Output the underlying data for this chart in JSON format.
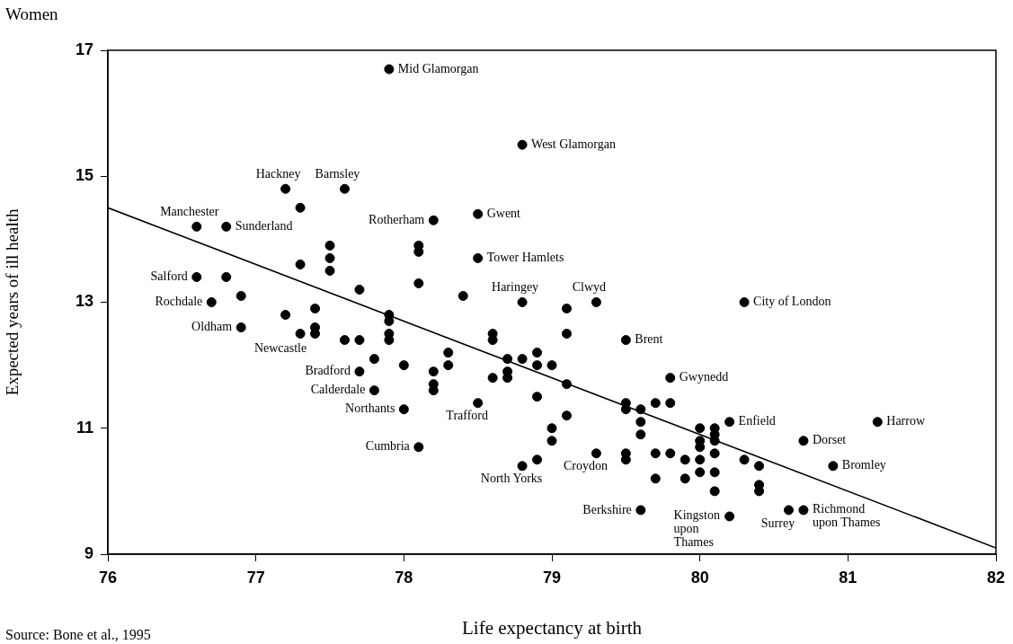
{
  "chart_data": {
    "type": "scatter",
    "title": "Women",
    "xlabel": "Life expectancy at birth",
    "ylabel": "Expected years of ill health",
    "xlim": [
      76,
      82
    ],
    "xticks": [
      76,
      77,
      78,
      79,
      80,
      81,
      82
    ],
    "ylim": [
      9,
      17
    ],
    "yticks": [
      9,
      11,
      13,
      15,
      17
    ],
    "grid": false,
    "legend": false,
    "series": [
      {
        "type": "scatter",
        "color": "#000000",
        "marker": "circle",
        "x": [
          77.9,
          78.8,
          77.2,
          77.6,
          77.3,
          76.6,
          76.8,
          78.2,
          78.5,
          77.5,
          77.5,
          77.5,
          77.3,
          78.1,
          78.1,
          78.5,
          76.6,
          76.8,
          77.7,
          78.1,
          78.4,
          76.7,
          76.9,
          77.2,
          77.4,
          76.9,
          77.3,
          77.4,
          77.4,
          77.6,
          77.7,
          77.9,
          77.9,
          77.9,
          77.9,
          77.8,
          78.0,
          77.7,
          77.8,
          78.0,
          78.1,
          78.8,
          79.3,
          79.1,
          79.1,
          79.5,
          78.6,
          78.6,
          78.3,
          78.3,
          78.2,
          78.2,
          78.2,
          78.7,
          78.7,
          78.7,
          78.8,
          78.9,
          78.9,
          79.0,
          78.6,
          79.1,
          79.8,
          79.5,
          79.5,
          79.6,
          79.7,
          79.8,
          79.6,
          79.6,
          78.5,
          78.9,
          79.1,
          79.0,
          79.0,
          78.9,
          78.8,
          79.3,
          79.5,
          79.5,
          79.7,
          79.8,
          79.9,
          79.7,
          79.9,
          79.6,
          80.3,
          80.2,
          81.2,
          80.7,
          80.9,
          80.0,
          80.0,
          80.0,
          80.0,
          80.0,
          80.1,
          80.1,
          80.1,
          80.1,
          80.1,
          80.1,
          80.3,
          80.4,
          80.4,
          80.4,
          80.2,
          80.6,
          80.7
        ],
        "values": [
          16.7,
          15.5,
          14.8,
          14.8,
          14.5,
          14.2,
          14.2,
          14.3,
          14.4,
          13.9,
          13.7,
          13.5,
          13.6,
          13.9,
          13.8,
          13.7,
          13.4,
          13.4,
          13.2,
          13.3,
          13.1,
          13.0,
          13.1,
          12.8,
          12.9,
          12.6,
          12.5,
          12.6,
          12.5,
          12.4,
          12.4,
          12.8,
          12.7,
          12.5,
          12.4,
          12.1,
          12.0,
          11.9,
          11.6,
          11.3,
          10.7,
          13.0,
          13.0,
          12.9,
          12.5,
          12.4,
          12.5,
          12.4,
          12.2,
          12.0,
          11.9,
          11.7,
          11.6,
          12.1,
          11.9,
          11.8,
          12.1,
          12.2,
          12.0,
          12.0,
          11.8,
          11.7,
          11.8,
          11.4,
          11.3,
          11.3,
          11.4,
          11.4,
          11.1,
          10.9,
          11.4,
          11.5,
          11.2,
          11.0,
          10.8,
          10.5,
          10.4,
          10.6,
          10.6,
          10.5,
          10.6,
          10.6,
          10.5,
          10.2,
          10.2,
          9.7,
          13.0,
          11.1,
          11.1,
          10.8,
          10.4,
          11.0,
          10.8,
          10.7,
          10.5,
          10.3,
          11.0,
          10.9,
          10.8,
          10.6,
          10.3,
          10.0,
          10.5,
          10.4,
          10.1,
          10.0,
          9.6,
          9.7,
          9.7
        ]
      },
      {
        "type": "line",
        "color": "#000000",
        "marker": "none",
        "line_style": "solid",
        "x": [
          76,
          82
        ],
        "values": [
          14.5,
          9.1
        ]
      }
    ],
    "annotations": [
      {
        "text": "Mid Glamorgan",
        "x": 77.9,
        "y": 16.7
      },
      {
        "text": "West Glamorgan",
        "x": 78.8,
        "y": 15.5
      },
      {
        "text": "Hackney",
        "x": 77.2,
        "y": 14.8
      },
      {
        "text": "Barnsley",
        "x": 77.6,
        "y": 14.8
      },
      {
        "text": "Manchester",
        "x": 76.6,
        "y": 14.2
      },
      {
        "text": "Sunderland",
        "x": 76.8,
        "y": 14.2
      },
      {
        "text": "Rotherham",
        "x": 78.2,
        "y": 14.3
      },
      {
        "text": "Gwent",
        "x": 78.5,
        "y": 14.4
      },
      {
        "text": "Tower Hamlets",
        "x": 78.5,
        "y": 13.7
      },
      {
        "text": "Salford",
        "x": 76.6,
        "y": 13.4
      },
      {
        "text": "Rochdale",
        "x": 76.7,
        "y": 13.0
      },
      {
        "text": "Oldham",
        "x": 76.9,
        "y": 12.6
      },
      {
        "text": "Newcastle",
        "x": 77.3,
        "y": 12.5
      },
      {
        "text": "Bradford",
        "x": 77.7,
        "y": 11.9
      },
      {
        "text": "Calderdale",
        "x": 77.8,
        "y": 11.6
      },
      {
        "text": "Northants",
        "x": 78.0,
        "y": 11.3
      },
      {
        "text": "Cumbria",
        "x": 78.1,
        "y": 10.7
      },
      {
        "text": "Haringey",
        "x": 78.8,
        "y": 13.0
      },
      {
        "text": "Clwyd",
        "x": 79.3,
        "y": 13.0
      },
      {
        "text": "Brent",
        "x": 79.5,
        "y": 12.4
      },
      {
        "text": "Trafford",
        "x": 78.5,
        "y": 11.4
      },
      {
        "text": "North Yorks",
        "x": 78.8,
        "y": 10.4
      },
      {
        "text": "Croydon",
        "x": 79.3,
        "y": 10.6
      },
      {
        "text": "Berkshire",
        "x": 79.6,
        "y": 9.7
      },
      {
        "text": "Gwynedd",
        "x": 79.8,
        "y": 11.8
      },
      {
        "text": "City of London",
        "x": 80.3,
        "y": 13.0
      },
      {
        "text": "Enfield",
        "x": 80.2,
        "y": 11.1
      },
      {
        "text": "Harrow",
        "x": 81.2,
        "y": 11.1
      },
      {
        "text": "Dorset",
        "x": 80.7,
        "y": 10.8
      },
      {
        "text": "Bromley",
        "x": 80.9,
        "y": 10.4
      },
      {
        "text": "Kingston upon Thames",
        "x": 80.2,
        "y": 9.6
      },
      {
        "text": "Surrey",
        "x": 80.6,
        "y": 9.7
      },
      {
        "text": "Richmond upon Thames",
        "x": 80.7,
        "y": 9.7
      },
      "Source: Bone et al., 1995"
    ]
  }
}
